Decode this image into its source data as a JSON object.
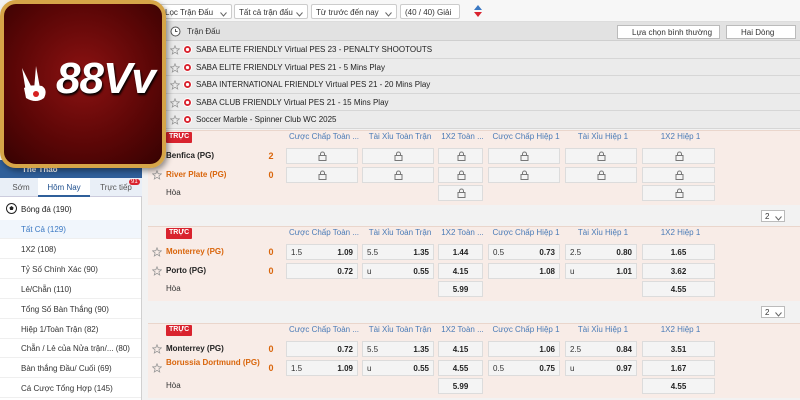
{
  "logo": {
    "text": "88Vv"
  },
  "filter_bar": {
    "items": [
      "Lọc Trận Đấu",
      "Tất cả trận đấu",
      "Từ trước đến nay",
      "(40 / 40) Giải"
    ]
  },
  "sidebar": {
    "title": "Thể Thao",
    "tabs": [
      "Sớm",
      "Hôm Nay",
      "Trực tiếp"
    ],
    "active_tab": 1,
    "live_badge": 91,
    "sport": "Bóng đá (190)",
    "active_market": 0,
    "markets": [
      "Tất Cả (129)",
      "1X2 (108)",
      "Tỷ Số Chính Xác (90)",
      "Lẻ/Chẵn (110)",
      "Tổng Số Bàn Thắng (90)",
      "Hiệp 1/Toàn Trận (82)",
      "Chẵn / Lẻ của Nửa trận/... (80)",
      "Bàn thắng Đầu/ Cuối (69)",
      "Cá Cược Tổng Hợp (145)"
    ]
  },
  "header": {
    "title": "Trận Đấu",
    "view_mode": "Lựa chọn bình thường",
    "row_mode": "Hai Dòng"
  },
  "leagues": [
    "SABA ELITE FRIENDLY Virtual PES 23 - PENALTY SHOOTOUTS",
    "SABA ELITE FRIENDLY Virtual PES 21 - 5 Mins Play",
    "SABA INTERNATIONAL FRIENDLY Virtual PES 21 - 20 Mins Play",
    "SABA CLUB FRIENDLY Virtual PES 21 - 15 Mins Play",
    "Soccer Marble - Spinner Club WC 2025"
  ],
  "matches": [
    {
      "status": "TRỰC",
      "columns": [
        "Cược Chấp Toàn ...",
        "Tài Xỉu Toàn Trận",
        "1X2 Toàn ...",
        "Cược Chấp Hiệp 1",
        "Tài Xỉu Hiệp 1",
        "1X2 Hiệp 1"
      ],
      "teams": [
        {
          "name": "Benfica (PG)",
          "score": 2,
          "color": "#222222",
          "odds": [
            {
              "locked": true
            },
            {
              "locked": true
            },
            {
              "locked": true
            },
            {
              "locked": true
            },
            {
              "locked": true
            },
            {
              "locked": true
            }
          ]
        },
        {
          "name": "River Plate (PG)",
          "score": 0,
          "color": "#d9650b",
          "odds": [
            {
              "locked": true
            },
            {
              "locked": true
            },
            {
              "locked": true
            },
            {
              "locked": true
            },
            {
              "locked": true
            },
            {
              "locked": true
            }
          ]
        }
      ],
      "draw": {
        "label": "Hòa",
        "odds": [
          null,
          null,
          {
            "locked": true
          },
          null,
          null,
          {
            "locked": true
          }
        ]
      },
      "page": 2
    },
    {
      "status": "TRỰC",
      "columns": [
        "Cược Chấp Toàn ...",
        "Tài Xỉu Toàn Trận",
        "1X2 Toàn ...",
        "Cược Chấp Hiệp 1",
        "Tài Xỉu Hiệp 1",
        "1X2 Hiệp 1"
      ],
      "teams": [
        {
          "name": "Monterrey (PG)",
          "score": 0,
          "color": "#d9650b",
          "odds": [
            {
              "line": "1.5",
              "price": "1.09"
            },
            {
              "line": "5.5",
              "price": "1.35"
            },
            {
              "price": "1.44"
            },
            {
              "line": "0.5",
              "price": "0.73"
            },
            {
              "line": "2.5",
              "price": "0.80"
            },
            {
              "price": "1.65"
            }
          ]
        },
        {
          "name": "Porto (PG)",
          "score": 0,
          "color": "#222222",
          "odds": [
            {
              "price": "0.72"
            },
            {
              "line": "u",
              "price": "0.55"
            },
            {
              "price": "4.15"
            },
            {
              "price": "1.08"
            },
            {
              "line": "u",
              "price": "1.01"
            },
            {
              "price": "3.62"
            }
          ]
        }
      ],
      "draw": {
        "label": "Hòa",
        "odds": [
          null,
          null,
          {
            "price": "5.99"
          },
          null,
          null,
          {
            "price": "4.55"
          }
        ]
      },
      "page": 2
    },
    {
      "status": "TRỰC",
      "columns": [
        "Cược Chấp Toàn ...",
        "Tài Xỉu Toàn Trận",
        "1X2 Toàn ...",
        "Cược Chấp Hiệp 1",
        "Tài Xỉu Hiệp 1",
        "1X2 Hiệp 1"
      ],
      "teams": [
        {
          "name": "Monterrey (PG)",
          "score": 0,
          "color": "#222222",
          "odds": [
            {
              "price": "0.72"
            },
            {
              "line": "5.5",
              "price": "1.35"
            },
            {
              "price": "4.15"
            },
            {
              "price": "1.06"
            },
            {
              "line": "2.5",
              "price": "0.84"
            },
            {
              "price": "3.51"
            }
          ]
        },
        {
          "name": "Borussia Dortmund (PG)",
          "score": 0,
          "color": "#d9650b",
          "odds": [
            {
              "line": "1.5",
              "price": "1.09"
            },
            {
              "line": "u",
              "price": "0.55"
            },
            {
              "price": "4.55"
            },
            {
              "line": "0.5",
              "price": "0.75"
            },
            {
              "line": "u",
              "price": "0.97"
            },
            {
              "price": "1.67"
            }
          ]
        }
      ],
      "draw": {
        "label": "Hòa",
        "odds": [
          null,
          null,
          {
            "price": "5.99"
          },
          null,
          null,
          {
            "price": "4.55"
          }
        ]
      }
    }
  ]
}
